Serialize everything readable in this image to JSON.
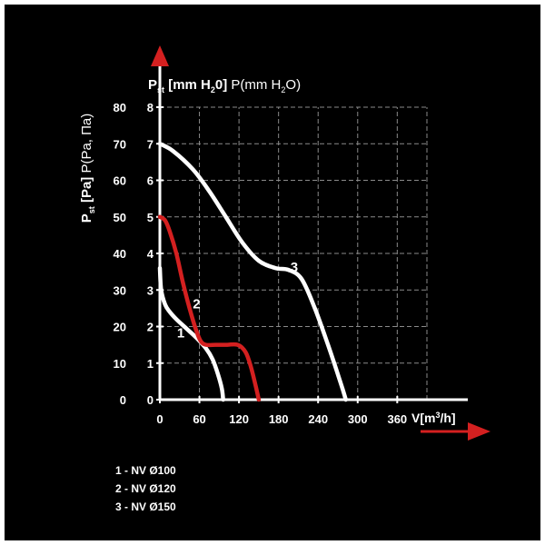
{
  "chart_data": {
    "type": "line",
    "title": "",
    "ylabel_left": {
      "main": "P",
      "sub": "st",
      "bracket": " [Pa]",
      "unit": " P(Pa, Па)"
    },
    "ylabel_right": {
      "main": "P",
      "sub": "st",
      "bracket_pre": " [mm H",
      "bracket_sub": "2",
      "bracket_post": "0]",
      "unit_pre": " P(mm H",
      "unit_sub": "2",
      "unit_post": "O)"
    },
    "xlabel": {
      "pre": "V[m",
      "sup": "3",
      "post": "/h]"
    },
    "x_ticks": [
      "0",
      "60",
      "120",
      "180",
      "240",
      "300",
      "360"
    ],
    "y_ticks_pa": [
      "0",
      "10",
      "20",
      "30",
      "40",
      "50",
      "60",
      "70",
      "80"
    ],
    "y_ticks_mm": [
      "0",
      "1",
      "2",
      "3",
      "4",
      "5",
      "6",
      "7",
      "8"
    ],
    "xlim": [
      0,
      405
    ],
    "ylim": [
      0,
      80
    ],
    "grid": true,
    "series": [
      {
        "name": "1",
        "color": "#ffffff",
        "x": [
          0,
          2,
          8,
          15,
          25,
          40,
          55,
          70,
          80,
          88,
          94,
          96
        ],
        "y": [
          36,
          30,
          26,
          24,
          22,
          19.5,
          17,
          14,
          11,
          7,
          3,
          0
        ]
      },
      {
        "name": "2",
        "color": "#d42020",
        "x": [
          0,
          8,
          15,
          25,
          35,
          45,
          55,
          62,
          70,
          85,
          100,
          118,
          130,
          138,
          145,
          150
        ],
        "y": [
          50,
          49,
          46,
          40,
          32,
          25,
          19,
          16,
          15,
          15,
          15,
          15,
          13,
          9,
          4,
          0
        ]
      },
      {
        "name": "3",
        "color": "#ffffff",
        "x": [
          0,
          20,
          50,
          75,
          100,
          125,
          150,
          175,
          195,
          215,
          235,
          255,
          268,
          277,
          282
        ],
        "y": [
          70,
          68,
          63,
          57,
          50,
          43,
          38,
          36,
          35.5,
          33,
          25,
          15,
          8,
          3,
          0
        ]
      }
    ],
    "legend": [
      "1 - NV Ø100",
      "2 - NV Ø120",
      "3 - NV Ø150"
    ]
  }
}
